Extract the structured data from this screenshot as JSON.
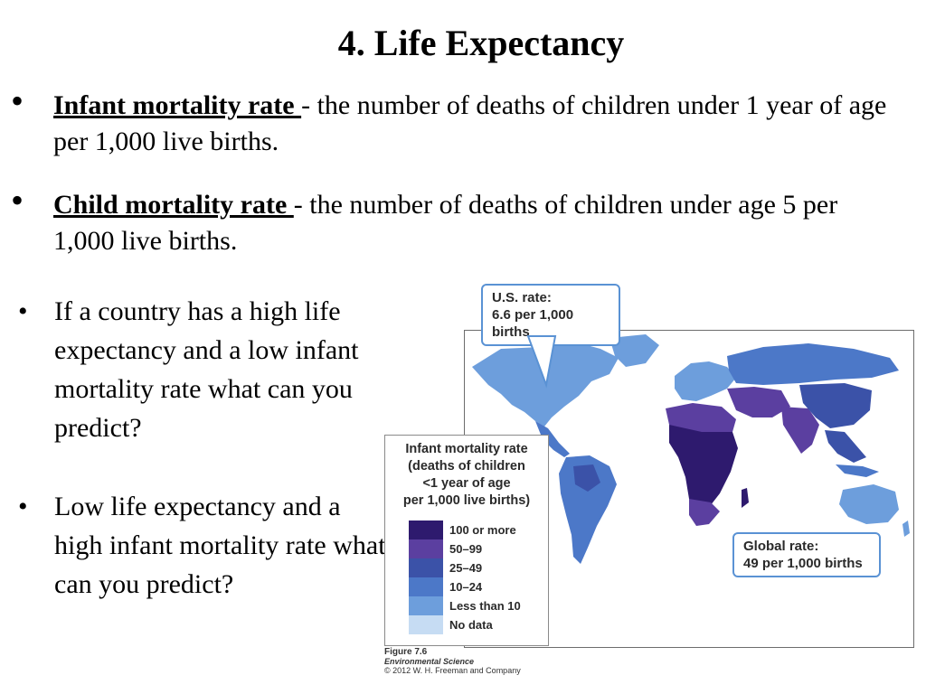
{
  "slide": {
    "title": "4. Life Expectancy",
    "definitions": [
      {
        "bullet": "•",
        "term": "Infant mortality rate ",
        "text": "- the number of deaths of children under 1 year of age per 1,000 live births."
      },
      {
        "bullet": "•",
        "term": "Child mortality rate ",
        "text": "- the number of deaths of children under age 5 per 1,000 live births."
      }
    ],
    "questions": [
      {
        "bullet": "•",
        "text": "If a country has a high life expectancy and a low infant mortality rate what can you predict?"
      },
      {
        "bullet": "•",
        "text": "Low life expectancy and a high infant mortality rate what can you predict?"
      }
    ]
  },
  "figure": {
    "us_callout": {
      "line1": "U.S. rate:",
      "line2": "6.6 per 1,000 births"
    },
    "global_callout": {
      "line1": "Global rate:",
      "line2": "49 per 1,000 births"
    },
    "legend": {
      "title_lines": [
        "Infant mortality rate",
        "(deaths of children",
        "<1 year of age",
        "per 1,000 live births)"
      ],
      "items": [
        {
          "label": "100 or more",
          "color": "#2e1a6e"
        },
        {
          "label": "50–99",
          "color": "#5b3fa0"
        },
        {
          "label": "25–49",
          "color": "#3b52a8"
        },
        {
          "label": "10–24",
          "color": "#4c78c8"
        },
        {
          "label": "Less than 10",
          "color": "#6d9edc"
        },
        {
          "label": "No data",
          "color": "#c6dcf3"
        }
      ]
    },
    "credit": {
      "figure_label": "Figure 7.6",
      "book": "Environmental Science",
      "copyright": "© 2012 W. H. Freeman and Company"
    }
  }
}
